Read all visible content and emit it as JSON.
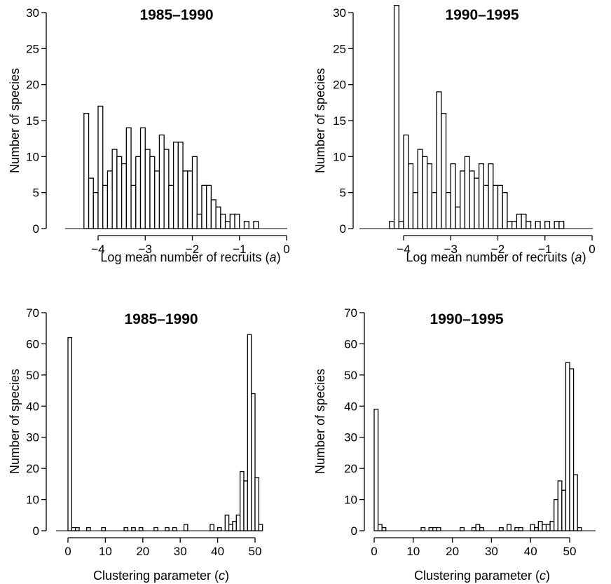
{
  "chart_data": [
    {
      "type": "bar",
      "title": "1985–1990",
      "xlabel": "Log mean number of recruits (",
      "xlabel_var": "a",
      "xlabel_tail": ")",
      "ylabel": "Number of species",
      "xlim": [
        -4.5,
        0
      ],
      "ylim": [
        0,
        30
      ],
      "xticks": [
        -4,
        -3,
        -2,
        -1,
        0
      ],
      "xtick_labels": [
        "−4",
        "−3",
        "−2",
        "−1",
        "0"
      ],
      "yticks": [
        0,
        5,
        10,
        15,
        20,
        25,
        30
      ],
      "ytick_labels": [
        "0",
        "5",
        "10",
        "15",
        "20",
        "25",
        "30"
      ],
      "bin_start": -4.3,
      "bin_width": 0.1,
      "values": [
        16,
        7,
        5,
        17,
        6,
        8,
        11,
        10,
        9,
        14,
        6,
        10,
        14,
        11,
        10,
        8,
        13,
        11,
        6,
        12,
        12,
        8,
        8,
        10,
        2,
        6,
        6,
        4,
        3,
        2,
        1,
        2,
        2,
        0,
        1,
        0,
        1
      ],
      "grid": false
    },
    {
      "type": "bar",
      "title": "1990–1995",
      "xlabel": "Log mean number of recruits (",
      "xlabel_var": "a",
      "xlabel_tail": ")",
      "ylabel": "Number of species",
      "xlim": [
        -4.5,
        0
      ],
      "ylim": [
        0,
        30
      ],
      "xticks": [
        -4,
        -3,
        -2,
        -1,
        0
      ],
      "xtick_labels": [
        "−4",
        "−3",
        "−2",
        "−1",
        "0"
      ],
      "yticks": [
        0,
        5,
        10,
        15,
        20,
        25,
        30
      ],
      "ytick_labels": [
        "0",
        "5",
        "10",
        "15",
        "20",
        "25",
        "30"
      ],
      "bin_start": -4.3,
      "bin_width": 0.1,
      "values": [
        1,
        31,
        1,
        13,
        9,
        5,
        11,
        10,
        9,
        5,
        19,
        16,
        5,
        9,
        3,
        8,
        10,
        8,
        7,
        9,
        6,
        9,
        6,
        6,
        5,
        1,
        1,
        2,
        2,
        1,
        0,
        1,
        0,
        1,
        0,
        1,
        1
      ],
      "grid": false
    },
    {
      "type": "bar",
      "title": "1985–1990",
      "xlabel": "Clustering parameter (",
      "xlabel_var": "c",
      "xlabel_tail": ")",
      "ylabel": "Number of species",
      "xlim": [
        0,
        52
      ],
      "ylim": [
        0,
        70
      ],
      "xticks": [
        0,
        10,
        20,
        30,
        40,
        50
      ],
      "xtick_labels": [
        "0",
        "10",
        "20",
        "30",
        "40",
        "50"
      ],
      "yticks": [
        0,
        10,
        20,
        30,
        40,
        50,
        60,
        70
      ],
      "ytick_labels": [
        "0",
        "10",
        "20",
        "30",
        "40",
        "50",
        "60",
        "70"
      ],
      "bin_start": 0,
      "bin_width": 1,
      "values": [
        62,
        1,
        1,
        0,
        0,
        1,
        0,
        0,
        0,
        1,
        0,
        0,
        0,
        0,
        0,
        1,
        0,
        1,
        0,
        1,
        0,
        0,
        0,
        1,
        0,
        0,
        1,
        0,
        1,
        0,
        0,
        2,
        0,
        0,
        0,
        0,
        0,
        0,
        2,
        0,
        1,
        0,
        5,
        2,
        3,
        5,
        19,
        16,
        63,
        44,
        17,
        2
      ],
      "grid": false
    },
    {
      "type": "bar",
      "title": "1990–1995",
      "xlabel": "Clustering parameter (",
      "xlabel_var": "c",
      "xlabel_tail": ")",
      "ylabel": "Number of species",
      "xlim": [
        0,
        52
      ],
      "ylim": [
        0,
        70
      ],
      "xticks": [
        0,
        10,
        20,
        30,
        40,
        50
      ],
      "xtick_labels": [
        "0",
        "10",
        "20",
        "30",
        "40",
        "50"
      ],
      "yticks": [
        0,
        10,
        20,
        30,
        40,
        50,
        60,
        70
      ],
      "ytick_labels": [
        "0",
        "10",
        "20",
        "30",
        "40",
        "50",
        "60",
        "70"
      ],
      "bin_start": 0,
      "bin_width": 1,
      "values": [
        39,
        2,
        1,
        0,
        0,
        0,
        0,
        0,
        0,
        0,
        0,
        0,
        1,
        0,
        1,
        1,
        1,
        0,
        0,
        0,
        0,
        0,
        1,
        0,
        0,
        1,
        2,
        1,
        0,
        0,
        0,
        0,
        1,
        0,
        2,
        0,
        1,
        1,
        0,
        0,
        2,
        1,
        3,
        2,
        2,
        3,
        10,
        16,
        13,
        54,
        52,
        18,
        1
      ],
      "grid": false
    }
  ]
}
